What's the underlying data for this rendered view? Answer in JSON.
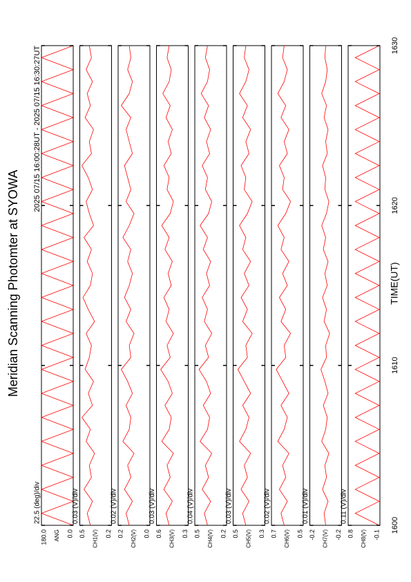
{
  "title": "Meridian Scanning Photomter at SYOWA",
  "subtitle": "2025 07/15 16:00:28UT - 2025 07/15 16:30:27UT",
  "xlabel": "TIME(UT)",
  "xlim": [
    1600,
    1630
  ],
  "xticks": [
    1600,
    1610,
    1620,
    1630
  ],
  "x": [
    1600,
    1600.75,
    1601.5,
    1602.25,
    1603,
    1603.75,
    1604.5,
    1605.25,
    1606,
    1606.75,
    1607.5,
    1608.25,
    1609,
    1609.75,
    1610.5,
    1611.25,
    1612,
    1612.75,
    1613.5,
    1614.25,
    1615,
    1615.75,
    1616.5,
    1617.25,
    1618,
    1618.75,
    1619.5,
    1620.25,
    1621,
    1621.75,
    1622.5,
    1623.25,
    1624,
    1624.75,
    1625.5,
    1626.25,
    1627,
    1627.75,
    1628.5,
    1629.25,
    1630
  ],
  "chart_data": [
    {
      "type": "line",
      "ylabel": "ANG",
      "scale_label": "22.5 (deg)/div",
      "color": "#ff0000",
      "ylim": [
        0,
        180
      ],
      "yticks": [
        {
          "value": 0,
          "label": "0.0"
        },
        {
          "value": 180,
          "label": "180.0"
        }
      ],
      "values": [
        0,
        180,
        0,
        180,
        0,
        180,
        0,
        180,
        0,
        180,
        0,
        180,
        0,
        180,
        0,
        180,
        0,
        180,
        0,
        180,
        0,
        180,
        0,
        180,
        0,
        180,
        0,
        180,
        0,
        180,
        0,
        180,
        0,
        180,
        0,
        180,
        0,
        180,
        0,
        180,
        0
      ]
    },
    {
      "type": "line",
      "ylabel": "CH1(V)",
      "scale_label": "0.03 (V)/div",
      "color": "#ff0000",
      "ylim": [
        0.2,
        0.5
      ],
      "yticks": [
        0.2,
        0.5
      ],
      "values": [
        0.4,
        0.43,
        0.38,
        0.46,
        0.39,
        0.41,
        0.36,
        0.44,
        0.4,
        0.48,
        0.38,
        0.42,
        0.37,
        0.45,
        0.41,
        0.39,
        0.44,
        0.36,
        0.42,
        0.47,
        0.4,
        0.38,
        0.43,
        0.39,
        0.46,
        0.37,
        0.41,
        0.44,
        0.38,
        0.42,
        0.48,
        0.39,
        0.41,
        0.37,
        0.45,
        0.4,
        0.43,
        0.38,
        0.44,
        0.39,
        0.41
      ]
    },
    {
      "type": "line",
      "ylabel": "CH2(V)",
      "scale_label": "0.02 (V)/div",
      "color": "#ff0000",
      "ylim": [
        0,
        0.2
      ],
      "yticks": [
        {
          "value": 0,
          "label": "0.0"
        },
        0.2
      ],
      "values": [
        0.13,
        0.15,
        0.11,
        0.16,
        0.12,
        0.14,
        0.1,
        0.17,
        0.13,
        0.12,
        0.15,
        0.11,
        0.14,
        0.18,
        0.12,
        0.13,
        0.1,
        0.15,
        0.12,
        0.16,
        0.13,
        0.11,
        0.14,
        0.12,
        0.17,
        0.13,
        0.1,
        0.15,
        0.12,
        0.14,
        0.16,
        0.11,
        0.13,
        0.15,
        0.12,
        0.18,
        0.13,
        0.11,
        0.14,
        0.12,
        0.13
      ]
    },
    {
      "type": "line",
      "ylabel": "CH3(V)",
      "scale_label": "0.03 (V)/div",
      "color": "#ff0000",
      "ylim": [
        0.3,
        0.6
      ],
      "yticks": [
        0.3,
        0.6
      ],
      "values": [
        0.48,
        0.51,
        0.45,
        0.53,
        0.47,
        0.5,
        0.44,
        0.55,
        0.48,
        0.46,
        0.52,
        0.45,
        0.49,
        0.56,
        0.47,
        0.5,
        0.44,
        0.51,
        0.48,
        0.53,
        0.46,
        0.49,
        0.45,
        0.52,
        0.48,
        0.55,
        0.47,
        0.44,
        0.5,
        0.48,
        0.53,
        0.46,
        0.49,
        0.45,
        0.51,
        0.47,
        0.54,
        0.48,
        0.46,
        0.5,
        0.48
      ]
    },
    {
      "type": "line",
      "ylabel": "CH4(V)",
      "scale_label": "0.04 (V)/div",
      "color": "#ff0000",
      "ylim": [
        0.2,
        0.5
      ],
      "yticks": [
        0.2,
        0.5
      ],
      "values": [
        0.38,
        0.41,
        0.35,
        0.43,
        0.37,
        0.4,
        0.34,
        0.45,
        0.38,
        0.36,
        0.42,
        0.35,
        0.39,
        0.46,
        0.37,
        0.4,
        0.34,
        0.41,
        0.38,
        0.43,
        0.36,
        0.39,
        0.35,
        0.42,
        0.38,
        0.45,
        0.37,
        0.34,
        0.4,
        0.38,
        0.43,
        0.36,
        0.39,
        0.35,
        0.41,
        0.37,
        0.44,
        0.38,
        0.36,
        0.4,
        0.38
      ]
    },
    {
      "type": "line",
      "ylabel": "CH5(V)",
      "scale_label": "0.03 (V)/div",
      "color": "#ff0000",
      "ylim": [
        0.3,
        0.5
      ],
      "yticks": [
        0.3,
        0.5
      ],
      "values": [
        0.42,
        0.44,
        0.4,
        0.45,
        0.41,
        0.43,
        0.39,
        0.46,
        0.42,
        0.4,
        0.44,
        0.39,
        0.43,
        0.47,
        0.41,
        0.42,
        0.38,
        0.44,
        0.41,
        0.45,
        0.4,
        0.43,
        0.39,
        0.44,
        0.42,
        0.46,
        0.41,
        0.38,
        0.43,
        0.42,
        0.45,
        0.4,
        0.42,
        0.39,
        0.44,
        0.41,
        0.46,
        0.42,
        0.4,
        0.43,
        0.42
      ]
    },
    {
      "type": "line",
      "ylabel": "CH6(V)",
      "scale_label": "0.02 (V)/div",
      "color": "#ff0000",
      "ylim": [
        0.5,
        0.7
      ],
      "yticks": [
        0.5,
        0.7
      ],
      "values": [
        0.62,
        0.64,
        0.6,
        0.65,
        0.61,
        0.63,
        0.59,
        0.66,
        0.62,
        0.6,
        0.64,
        0.59,
        0.63,
        0.67,
        0.61,
        0.62,
        0.58,
        0.64,
        0.61,
        0.65,
        0.6,
        0.63,
        0.59,
        0.64,
        0.62,
        0.66,
        0.61,
        0.58,
        0.63,
        0.62,
        0.65,
        0.6,
        0.62,
        0.59,
        0.64,
        0.61,
        0.66,
        0.62,
        0.6,
        0.63,
        0.62
      ]
    },
    {
      "type": "line",
      "ylabel": "CH7(V)",
      "scale_label": "0.01 (V)/div",
      "color": "#ff0000",
      "ylim": [
        -0.2,
        -0.16
      ],
      "yticks": [
        {
          "value": -0.2,
          "label": "-0.2"
        },
        {
          "value": -0.16,
          "label": "-0.2"
        }
      ],
      "values": [
        -0.18,
        -0.178,
        -0.183,
        -0.176,
        -0.181,
        -0.179,
        -0.184,
        -0.175,
        -0.18,
        -0.182,
        -0.177,
        -0.183,
        -0.179,
        -0.174,
        -0.181,
        -0.18,
        -0.185,
        -0.178,
        -0.181,
        -0.176,
        -0.182,
        -0.179,
        -0.183,
        -0.177,
        -0.18,
        -0.175,
        -0.181,
        -0.184,
        -0.179,
        -0.18,
        -0.176,
        -0.182,
        -0.18,
        -0.183,
        -0.178,
        -0.181,
        -0.175,
        -0.18,
        -0.182,
        -0.179,
        -0.18
      ]
    },
    {
      "type": "line",
      "ylabel": "CH8(V)",
      "scale_label": "0.11 (V)/div",
      "color": "#ff0000",
      "ylim": [
        -0.1,
        0.8
      ],
      "yticks": [
        -0.1,
        0.8
      ],
      "values": [
        -0.08,
        0.6,
        -0.08,
        0.6,
        -0.08,
        0.6,
        -0.08,
        0.6,
        -0.08,
        0.6,
        -0.08,
        0.6,
        -0.08,
        0.6,
        -0.08,
        0.6,
        -0.08,
        0.6,
        -0.08,
        0.6,
        -0.08,
        0.6,
        -0.08,
        0.6,
        -0.08,
        0.6,
        -0.08,
        0.6,
        -0.08,
        0.6,
        -0.08,
        0.6,
        -0.08,
        0.6,
        -0.08,
        0.6,
        -0.08,
        0.6,
        -0.08,
        0.6,
        -0.08
      ]
    }
  ]
}
